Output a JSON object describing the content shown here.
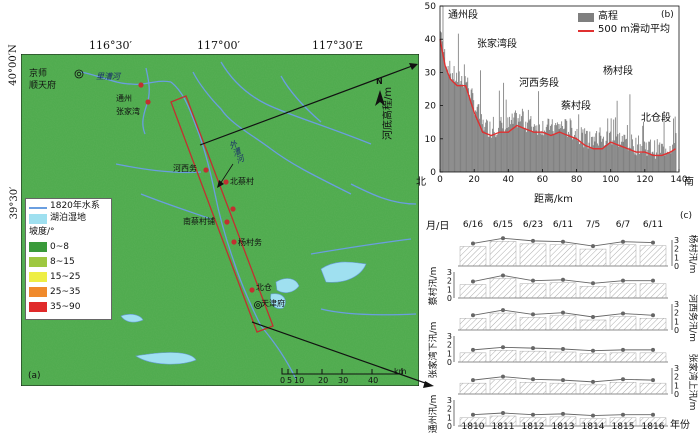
{
  "map": {
    "panel_label": "(a)",
    "lon_ticks": [
      "116°30′",
      "117°00′",
      "117°30′E"
    ],
    "lat_ticks": [
      "40°00′N",
      "39°30′"
    ],
    "places": {
      "jingshi": "京师",
      "shuntian": "顺天府",
      "lilaohe": "里漕河",
      "tongzhou": "通州",
      "zhangjiawan": "张家湾",
      "waicaohe": "外漕河",
      "hexiwu": "河西务",
      "beicaicun": "北蔡村",
      "nancaicun": "南蔡村铺",
      "yangcunwu": "杨村务",
      "beicang": "北仓",
      "tianjin": "天津府"
    },
    "legend": {
      "river": "1820年水系",
      "lake": "湖泊湿地",
      "slope_title": "坡度/°",
      "classes": [
        {
          "label": "0~8",
          "color": "#3a9a3a"
        },
        {
          "label": "8~15",
          "color": "#9ec840"
        },
        {
          "label": "15~25",
          "color": "#eeee44"
        },
        {
          "label": "25~35",
          "color": "#f08a2c"
        },
        {
          "label": "35~90",
          "color": "#e02a2a"
        }
      ]
    },
    "north": "N",
    "scale": {
      "ticks": [
        "0",
        "5",
        "10",
        "20",
        "30",
        "40"
      ],
      "unit": "km"
    },
    "colors": {
      "land": "#4caa4c",
      "river": "#6a9ee0",
      "lake": "#9fe0f0",
      "box": "#c23030",
      "point": "#c23030"
    }
  },
  "chart_b": {
    "chart_data": {
      "type": "area",
      "panel_label": "(b)",
      "ylabel": "河底高程/m",
      "xlabel": "距离/km",
      "xlim": [
        0,
        140
      ],
      "ylim": [
        0,
        50
      ],
      "x_ticks": [
        "0",
        "20",
        "40",
        "60",
        "80",
        "100",
        "120",
        "140"
      ],
      "y_ticks": [
        "0",
        "10",
        "20",
        "30",
        "40",
        "50"
      ],
      "left_end": "北",
      "right_end": "南",
      "legend": [
        "高程",
        "500 m滑动平均"
      ],
      "segments": [
        "通州段",
        "张家湾段",
        "河西务段",
        "蔡村段",
        "杨村段",
        "北仓段"
      ],
      "series": [
        {
          "name": "500 m滑动平均",
          "x": [
            0,
            3,
            6,
            10,
            15,
            20,
            25,
            30,
            35,
            40,
            45,
            50,
            55,
            60,
            65,
            70,
            75,
            80,
            85,
            90,
            95,
            100,
            105,
            110,
            115,
            120,
            125,
            130,
            135,
            138
          ],
          "values": [
            40,
            32,
            28,
            26,
            26,
            18,
            12,
            11,
            12,
            12,
            14,
            13,
            12,
            12,
            11,
            12,
            11,
            10,
            8,
            7,
            7,
            9,
            8,
            7,
            6,
            6,
            5,
            5,
            6,
            7
          ]
        }
      ],
      "colors": {
        "elevation": "#7f7f7f",
        "smooth": "#e03030"
      }
    }
  },
  "chart_c": {
    "chart_data": {
      "type": "line",
      "panel_label": "(c)",
      "month_day_label": "月/日",
      "dates": [
        "6/16",
        "6/15",
        "6/23",
        "6/11",
        "7/5",
        "6/7",
        "6/11"
      ],
      "x": [
        "1810",
        "1811",
        "1812",
        "1813",
        "1814",
        "1815",
        "1816"
      ],
      "xlabel": "年份",
      "y_ticks": [
        "0",
        "1",
        "2",
        "3"
      ],
      "series": [
        {
          "name": "杨村汛/m",
          "values": [
            2.6,
            3.2,
            2.9,
            2.8,
            2.3,
            2.8,
            2.7
          ]
        },
        {
          "name": "蔡村汛/m",
          "values": [
            1.9,
            2.6,
            2.0,
            2.1,
            1.7,
            2.0,
            2.0
          ]
        },
        {
          "name": "河西务汛/m",
          "values": [
            1.7,
            2.3,
            1.8,
            2.0,
            1.5,
            1.9,
            1.7
          ]
        },
        {
          "name": "张家湾下汛/m",
          "values": [
            1.4,
            1.7,
            1.6,
            1.5,
            1.3,
            1.4,
            1.4
          ]
        },
        {
          "name": "张家湾上汛/m",
          "values": [
            1.6,
            2.0,
            1.7,
            1.6,
            1.4,
            1.7,
            1.6
          ]
        },
        {
          "name": "通州汛/m",
          "values": [
            1.3,
            1.5,
            1.3,
            1.4,
            1.2,
            1.3,
            1.3
          ]
        }
      ],
      "colors": {
        "line": "#666666",
        "hatch": "#999999"
      }
    }
  }
}
